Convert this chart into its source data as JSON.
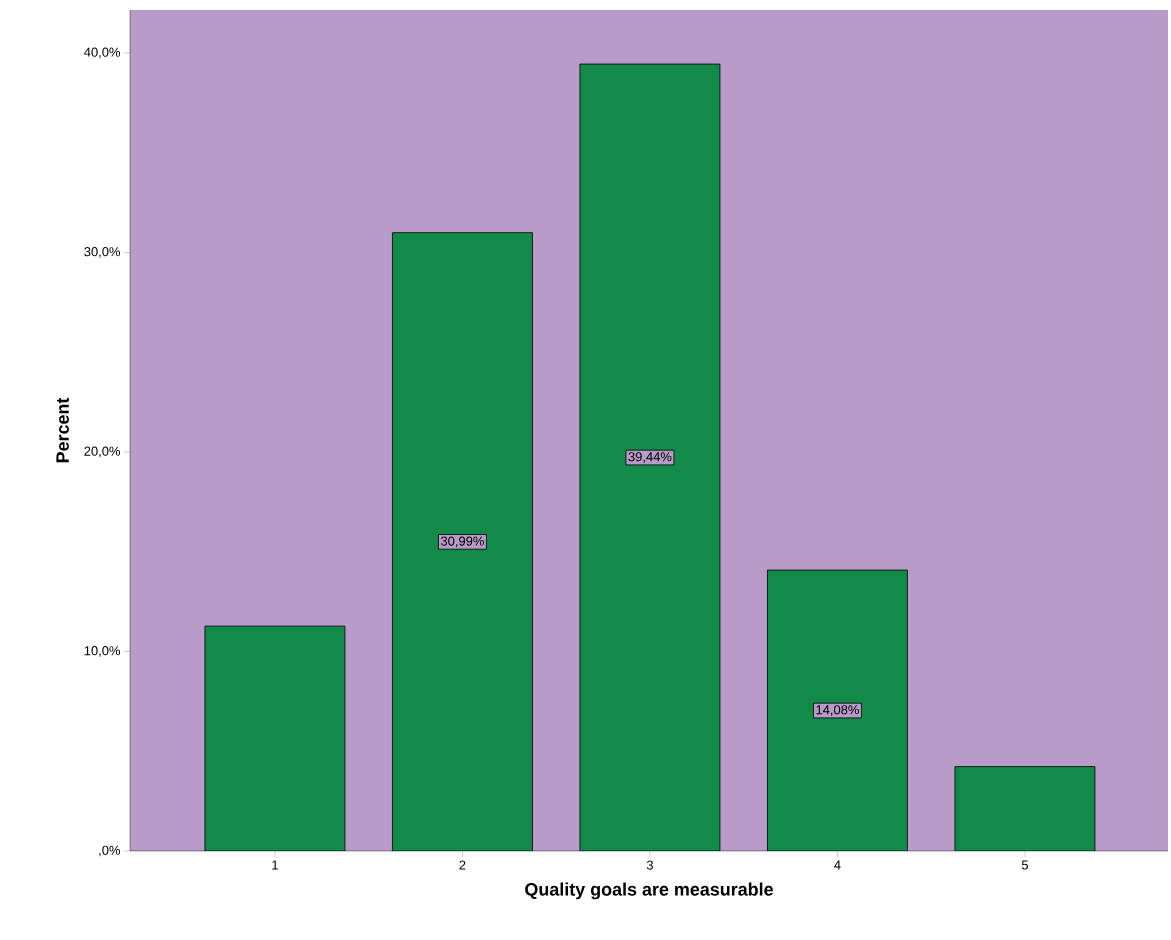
{
  "chart_data": {
    "type": "bar",
    "xlabel": "Quality goals are measurable",
    "ylabel": "Percent",
    "categories": [
      "1",
      "2",
      "3",
      "4",
      "5"
    ],
    "values": [
      11.27,
      30.99,
      39.44,
      14.08,
      4.23
    ],
    "value_labels": [
      null,
      "30,99%",
      "39,44%",
      "14,08%",
      null
    ],
    "color": "#118b47",
    "ylim": [
      0,
      42.15
    ],
    "yticks": [
      {
        "value": 0,
        "label": ",0%"
      },
      {
        "value": 10,
        "label": "10,0%"
      },
      {
        "value": 20,
        "label": "20,0%"
      },
      {
        "value": 30,
        "label": "30,0%"
      },
      {
        "value": 40,
        "label": "40,0%"
      }
    ]
  }
}
